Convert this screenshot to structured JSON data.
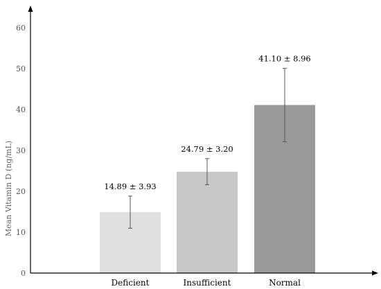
{
  "chart_data": {
    "type": "bar",
    "categories": [
      "Deficient",
      "Insufficient",
      "Normal"
    ],
    "values": [
      14.89,
      24.79,
      41.1
    ],
    "errors": [
      3.93,
      3.2,
      8.96
    ],
    "data_labels": [
      "14.89 ± 3.93",
      "24.79 ± 3.20",
      "41.10 ± 8.96"
    ],
    "colors": [
      "#e0e0e0",
      "#c8c8c8",
      "#999999"
    ],
    "title": "",
    "xlabel": "",
    "ylabel": "Mean Vitamin D (ng/mL)",
    "ylim": [
      0,
      60
    ],
    "yticks": [
      0,
      10,
      20,
      30,
      40,
      50,
      60
    ],
    "grid": false,
    "legend": "none"
  }
}
